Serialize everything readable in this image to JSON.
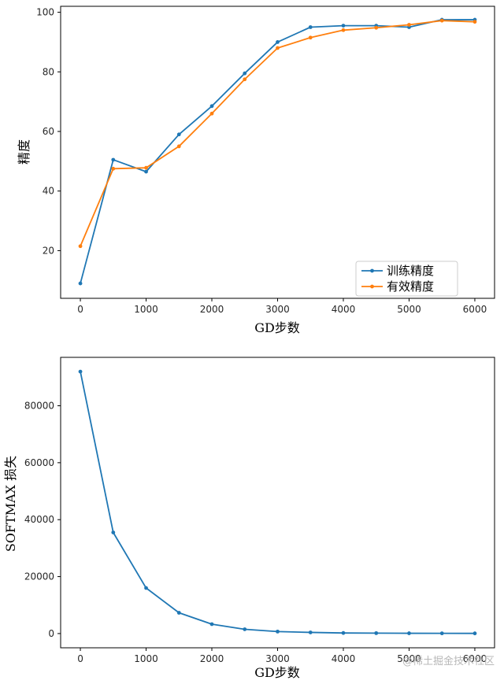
{
  "chart_data": [
    {
      "type": "line",
      "title": "",
      "xlabel": "GD步数",
      "ylabel": "精度",
      "xlim": [
        -300,
        6300
      ],
      "ylim": [
        4,
        102
      ],
      "xticks": [
        0,
        1000,
        2000,
        3000,
        4000,
        5000,
        6000
      ],
      "yticks": [
        20,
        40,
        60,
        80,
        100
      ],
      "legend_position": "lower-right",
      "x": [
        0,
        500,
        1000,
        1500,
        2000,
        2500,
        3000,
        3500,
        4000,
        4500,
        5000,
        5500,
        6000
      ],
      "series": [
        {
          "name": "训练精度",
          "color": "#1f77b4",
          "values": [
            9,
            50.5,
            46.5,
            59,
            68.5,
            79.5,
            90,
            95,
            95.5,
            95.5,
            95,
            97.5,
            97.5
          ]
        },
        {
          "name": "有效精度",
          "color": "#ff7f0e",
          "values": [
            21.5,
            47.5,
            47.8,
            55,
            66,
            77.5,
            88,
            91.5,
            94,
            94.8,
            95.8,
            97.2,
            96.8
          ]
        }
      ]
    },
    {
      "type": "line",
      "title": "",
      "xlabel": "GD步数",
      "ylabel": "SOFTMAX 损失",
      "xlim": [
        -300,
        6300
      ],
      "ylim": [
        -5000,
        97000
      ],
      "xticks": [
        0,
        1000,
        2000,
        3000,
        4000,
        5000,
        6000
      ],
      "yticks": [
        0,
        20000,
        40000,
        60000,
        80000
      ],
      "x": [
        0,
        500,
        1000,
        1500,
        2000,
        2500,
        3000,
        3500,
        4000,
        4500,
        5000,
        5500,
        6000
      ],
      "series": [
        {
          "color": "#1f77b4",
          "values": [
            92000,
            35500,
            16000,
            7300,
            3300,
            1500,
            700,
            400,
            200,
            150,
            100,
            80,
            60
          ]
        }
      ]
    }
  ],
  "watermark": "@稀土掘金技术社区"
}
